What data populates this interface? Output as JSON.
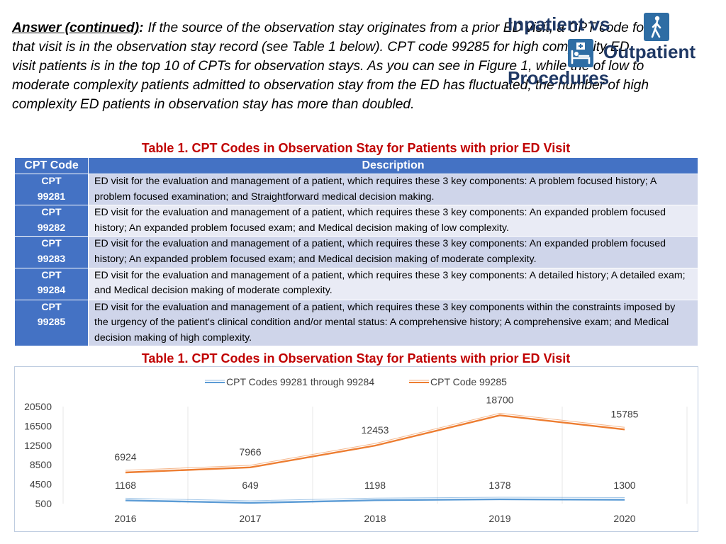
{
  "intro": {
    "lead": "Answer (continued)",
    "colon": ":",
    "text": "If the source of the observation stay originates from a prior ED visit, a CPT code for that visit is in the observation stay record (see Table 1 below). CPT code 99285 for high complexity ED visit patients is in the top 10 of CPTs for observation stays. As you can see in Figure 1, while the of low to moderate complexity patients admitted to observation stay from the ED has fluctuated, the number of high complexity ED patients in observation stay has more than doubled."
  },
  "header": {
    "line1": "Inpatient vs",
    "line2": "Outpatient",
    "line3": "Procedures",
    "icon_walking": "walking-person-icon",
    "icon_bed": "hospital-bed-icon",
    "color": "#1f3864",
    "icon_color": "#2e6da4"
  },
  "table": {
    "caption": "Table 1. CPT Codes in Observation Stay for Patients with prior ED Visit",
    "headers": [
      "CPT Code",
      "Description"
    ],
    "rows": [
      {
        "code_line1": "CPT",
        "code_line2": "99281",
        "desc": "ED visit for the evaluation and management of a patient, which requires these 3 key components: A problem focused history; A problem focused examination; and Straightforward medical decision making."
      },
      {
        "code_line1": "CPT",
        "code_line2": "99282",
        "desc": "ED visit for the evaluation and management of a patient, which requires these 3 key components: An expanded problem focused history; An expanded problem focused exam; and Medical decision making of low complexity."
      },
      {
        "code_line1": "CPT",
        "code_line2": "99283",
        "desc": "ED visit for the evaluation and management of a patient, which requires these 3 key components: An expanded problem focused history; An expanded problem focused exam; and Medical decision making of moderate complexity."
      },
      {
        "code_line1": "CPT",
        "code_line2": "99284",
        "desc": "ED visit for the evaluation and management of a patient, which requires these 3 key components: A detailed history; A detailed exam; and Medical decision making of moderate complexity."
      },
      {
        "code_line1": "CPT",
        "code_line2": "99285",
        "desc": "ED visit for the evaluation and management of a patient, which requires these 3 key components within the constraints imposed by the urgency of the patient's clinical condition and/or mental status: A comprehensive history; A comprehensive exam; and Medical decision making of high complexity."
      }
    ],
    "header_color": "#4472c4",
    "odd_row_color": "#cfd5ea",
    "even_row_color": "#e9ebf5"
  },
  "chart_caption": "Table 1. CPT Codes in Observation Stay for Patients with prior ED Visit",
  "chart_data": {
    "type": "line",
    "title": "",
    "xlabel": "",
    "ylabel": "",
    "categories": [
      "2016",
      "2017",
      "2018",
      "2019",
      "2020"
    ],
    "yticks": [
      "20500",
      "16500",
      "12500",
      "8500",
      "4500",
      "500"
    ],
    "ylim": [
      500,
      20500
    ],
    "grid": "vertical",
    "legend_position": "top",
    "series": [
      {
        "name": "CPT Codes 99281 through 99284",
        "values": [
          1168,
          649,
          1198,
          1378,
          1300
        ],
        "color": "#5b9bd5"
      },
      {
        "name": "CPT Code 99285",
        "values": [
          6924,
          7966,
          12453,
          18700,
          15785
        ],
        "color": "#ed7d31"
      }
    ]
  }
}
